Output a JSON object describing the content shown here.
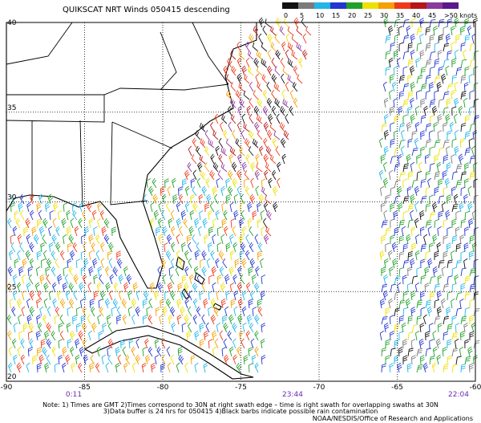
{
  "header": {
    "title": "QUIKSCAT NRT Winds 050415 descending"
  },
  "legend": {
    "items": [
      {
        "label": "0",
        "color": "#111111"
      },
      {
        "label": "5",
        "color": "#7a7a7a"
      },
      {
        "label": "10",
        "color": "#22b5e5"
      },
      {
        "label": "15",
        "color": "#2236d0"
      },
      {
        "label": "20",
        "color": "#22a02a"
      },
      {
        "label": "25",
        "color": "#eee000"
      },
      {
        "label": "30",
        "color": "#f5a000"
      },
      {
        "label": "35",
        "color": "#ee3a1a"
      },
      {
        "label": "40",
        "color": "#b41818"
      },
      {
        "label": "45",
        "color": "#8a3a9a"
      },
      {
        "label": ">50 knots",
        "color": "#5a1a8a"
      }
    ]
  },
  "map": {
    "lat_labels": [
      "40",
      "35",
      "30",
      "25",
      "20"
    ],
    "lon_labels": [
      "-90",
      "-85",
      "-80",
      "-75",
      "-70",
      "-65",
      "-60"
    ],
    "swath_times": [
      "0:11",
      "23:44",
      "22:04"
    ]
  },
  "footer": {
    "notes": [
      "Note: 1) Times are GMT 2)Times correspond to 30N at right swath edge – time is right swath for overlapping swaths at 30N",
      "3)Data buffer is 24 hrs for 050415 4)Black barbs indicate possible rain contamination"
    ],
    "credit": "NOAA/NESDIS/Office of Research and Applications"
  }
}
